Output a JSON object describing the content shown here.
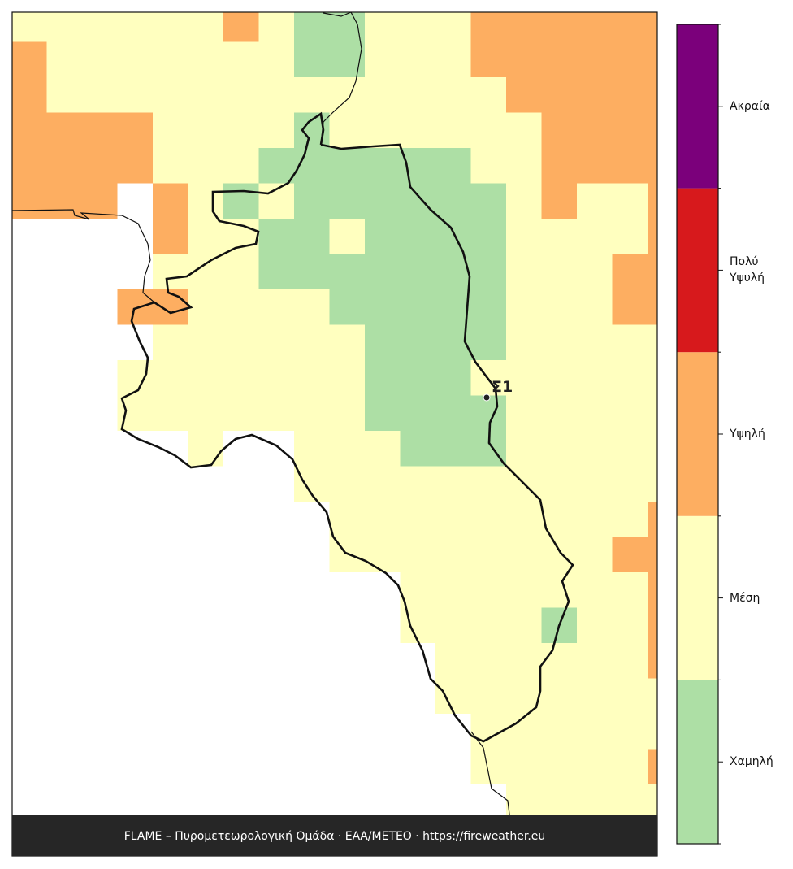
{
  "map": {
    "station": "Σ1",
    "footer": "FLAME – Πυρομετεωρολογική Ομάδα · ΕΑΑ/METEO · https://fireweather.eu"
  },
  "legend": {
    "levels": [
      {
        "label": "Χαμηλή",
        "color": "#addfa5"
      },
      {
        "label": "Μέση",
        "color": "#ffffbf"
      },
      {
        "label": "Υψηλή",
        "color": "#fdae61"
      },
      {
        "label": "Πολύ Υψυλή",
        "color": "#d7191c"
      },
      {
        "label": "Ακραία",
        "color": "#7b007b"
      }
    ]
  }
}
